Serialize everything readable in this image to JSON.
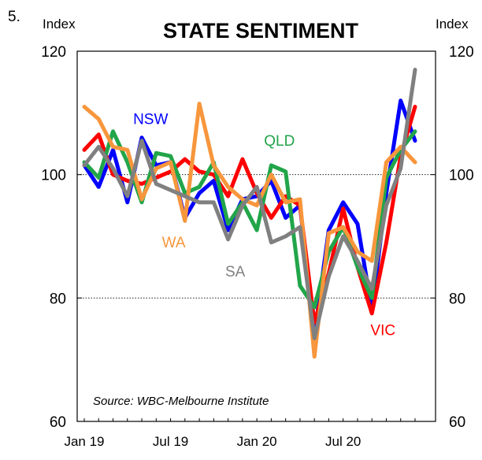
{
  "figure_number": "5.",
  "chart_data": {
    "type": "line",
    "title": "STATE SENTIMENT",
    "ylabel_left": "Index",
    "ylabel_right": "Index",
    "ylim": [
      60,
      120
    ],
    "yticks": [
      60,
      80,
      100,
      120
    ],
    "ytick_labels": [
      "60",
      "80",
      "100",
      "120"
    ],
    "gridlines": [
      80,
      100
    ],
    "x_months": 24,
    "xticks": [
      {
        "month": 0,
        "label": "Jan 19"
      },
      {
        "month": 6,
        "label": "Jul 19"
      },
      {
        "month": 12,
        "label": "Jan 20"
      },
      {
        "month": 18,
        "label": "Jul 20"
      }
    ],
    "source": "Source: WBC-Melbourne Institute",
    "series": [
      {
        "name": "NSW",
        "color": "#0000ff",
        "values": [
          101.5,
          98,
          104,
          95.5,
          106,
          101.5,
          102,
          93,
          97,
          99,
          91,
          96,
          96.5,
          99,
          93,
          95,
          74,
          91,
          95.5,
          92,
          78,
          97,
          112,
          105.5
        ]
      },
      {
        "name": "VIC",
        "color": "#ff0000",
        "values": [
          104,
          106.5,
          100,
          99,
          98.5,
          99.5,
          100.5,
          102.5,
          100.5,
          100,
          96.5,
          102.5,
          97,
          93,
          96.5,
          95,
          76,
          84,
          94.5,
          85,
          77.5,
          89,
          103,
          111
        ]
      },
      {
        "name": "QLD",
        "color": "#22a54a",
        "values": [
          102,
          99.5,
          107,
          102,
          95.5,
          103.5,
          103,
          97,
          98,
          102,
          92,
          95.5,
          91,
          101.5,
          100.5,
          82,
          78.5,
          87.5,
          91.5,
          85,
          80,
          99.5,
          104,
          107
        ]
      },
      {
        "name": "WA",
        "color": "#f7963c",
        "values": [
          111,
          109,
          104.5,
          104,
          96,
          101,
          102,
          92.5,
          111.5,
          101.5,
          98,
          96,
          95,
          100,
          95.5,
          96,
          70.5,
          90.5,
          91.5,
          87.5,
          86,
          102,
          104.5,
          102
        ]
      },
      {
        "name": "SA",
        "color": "#808080",
        "values": [
          101.5,
          104.5,
          101,
          96.5,
          105.5,
          98.5,
          97.5,
          96.5,
          95.5,
          95.5,
          89.5,
          95,
          98,
          89,
          90,
          91.5,
          73.5,
          83.5,
          90,
          86,
          81.5,
          95,
          101,
          117
        ]
      }
    ],
    "series_labels": [
      {
        "text": "NSW",
        "color": "#0000ff",
        "month": 3.4,
        "value": 108.2
      },
      {
        "text": "QLD",
        "color": "#22a54a",
        "month": 12.5,
        "value": 104.7
      },
      {
        "text": "WA",
        "color": "#f7963c",
        "month": 5.4,
        "value": 88.2
      },
      {
        "text": "SA",
        "color": "#808080",
        "month": 9.8,
        "value": 83.5
      },
      {
        "text": "VIC",
        "color": "#ff0000",
        "month": 19.9,
        "value": 74
      }
    ]
  }
}
